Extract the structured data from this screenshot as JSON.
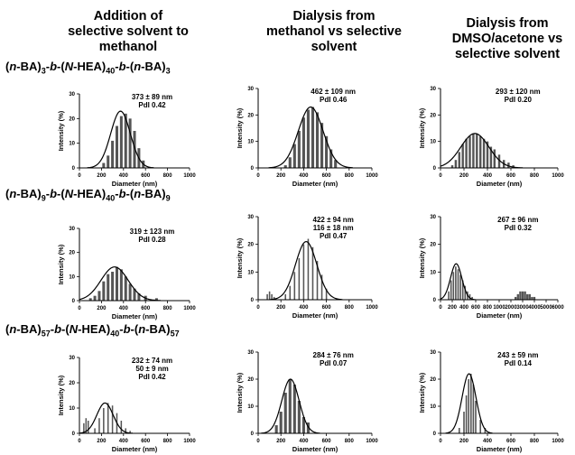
{
  "headers": {
    "col1": [
      "Addition of",
      "selective solvent to",
      "methanol"
    ],
    "col2": [
      "Dialysis from",
      "methanol vs selective",
      "solvent"
    ],
    "col3": [
      "Dialysis from",
      "DMSO/acetone vs",
      "selective solvent"
    ]
  },
  "rows": [
    {
      "pre": "(",
      "a": "n",
      "b": "-BA)",
      "s1": "3",
      "m1": "-",
      "m2": "b",
      "m3": "-(",
      "n": "N",
      "m4": "-HEA)",
      "s2": "40",
      "m5": "-",
      "m6": "b",
      "m7": "-(",
      "a2": "n",
      "b2": "-BA)",
      "s3": "3"
    },
    {
      "pre": "(",
      "a": "n",
      "b": "-BA)",
      "s1": "9",
      "m1": "-",
      "m2": "b",
      "m3": "-(",
      "n": "N",
      "m4": "-HEA)",
      "s2": "40",
      "m5": "-",
      "m6": "b",
      "m7": "-(",
      "a2": "n",
      "b2": "-BA)",
      "s3": "9"
    },
    {
      "pre": "(",
      "a": "n",
      "b": "-BA)",
      "s1": "57",
      "m1": "-",
      "m2": "b",
      "m3": "-(",
      "n": "N",
      "m4": "-HEA)",
      "s2": "40",
      "m5": "-",
      "m6": "b",
      "m7": "-(",
      "a2": "n",
      "b2": "-BA)",
      "s3": "57"
    }
  ],
  "chart_data": [
    {
      "type": "bar",
      "row": 1,
      "col": 1,
      "xlabel": "Diameter (nm)",
      "ylabel": "Intensity (%)",
      "xlim": [
        0,
        1000
      ],
      "ylim": [
        0,
        30
      ],
      "xticks": [
        "0",
        "200",
        "400",
        "600",
        "800",
        "1000"
      ],
      "yticks": [
        "0",
        "10",
        "20",
        "30"
      ],
      "annotation": [
        "373 ± 89 nm",
        "PdI 0.42"
      ],
      "x": [
        220,
        260,
        300,
        340,
        380,
        420,
        460,
        500,
        540,
        580
      ],
      "values": [
        2,
        5,
        11,
        17,
        21,
        22,
        20,
        15,
        8,
        3
      ],
      "fit": {
        "mean": 373,
        "sd": 89,
        "peak": 23
      }
    },
    {
      "type": "bar",
      "row": 1,
      "col": 2,
      "xlabel": "Diameter (nm)",
      "ylabel": "Intensity (%)",
      "xlim": [
        0,
        1000
      ],
      "ylim": [
        0,
        30
      ],
      "xticks": [
        "0",
        "200",
        "400",
        "600",
        "800",
        "1000"
      ],
      "yticks": [
        "0",
        "10",
        "20",
        "30"
      ],
      "annotation": [
        "462 ± 109 nm",
        "PdI 0.46"
      ],
      "x": [
        240,
        280,
        320,
        360,
        400,
        440,
        480,
        520,
        560,
        600,
        640,
        680
      ],
      "values": [
        1,
        4,
        9,
        14,
        19,
        22,
        23,
        21,
        17,
        12,
        7,
        3
      ],
      "fit": {
        "mean": 462,
        "sd": 109,
        "peak": 23
      }
    },
    {
      "type": "bar",
      "row": 1,
      "col": 3,
      "xlabel": "Diameter (nm)",
      "ylabel": "Intensity (%)",
      "xlim": [
        0,
        1000
      ],
      "ylim": [
        0,
        30
      ],
      "xticks": [
        "0",
        "200",
        "400",
        "600",
        "800",
        "1000"
      ],
      "yticks": [
        "0",
        "10",
        "20",
        "30"
      ],
      "annotation": [
        "293 ± 120 nm",
        "PdI 0.20"
      ],
      "x": [
        100,
        130,
        160,
        190,
        220,
        250,
        280,
        310,
        340,
        370,
        400,
        430,
        460,
        500,
        540,
        580,
        620
      ],
      "values": [
        1,
        3,
        6,
        9,
        11,
        12,
        13,
        13,
        12,
        11,
        10,
        8,
        7,
        5,
        3,
        2,
        1
      ],
      "fit": {
        "mean": 293,
        "sd": 120,
        "peak": 13
      }
    },
    {
      "type": "bar",
      "row": 2,
      "col": 1,
      "xlabel": "Diameter (nm)",
      "ylabel": "Intensity (%)",
      "xlim": [
        0,
        1000
      ],
      "ylim": [
        0,
        30
      ],
      "xticks": [
        "0",
        "200",
        "400",
        "600",
        "800",
        "1000"
      ],
      "yticks": [
        "0",
        "10",
        "20",
        "30"
      ],
      "annotation": [
        "319 ± 123 nm",
        "PdI 0.28"
      ],
      "x": [
        100,
        140,
        180,
        220,
        260,
        300,
        340,
        380,
        420,
        460,
        500,
        540,
        600,
        700
      ],
      "values": [
        1,
        2,
        4,
        8,
        11,
        12,
        14,
        13,
        10,
        7,
        5,
        3,
        2,
        1
      ],
      "fit": {
        "mean": 319,
        "sd": 123,
        "peak": 14
      }
    },
    {
      "type": "bar",
      "row": 2,
      "col": 2,
      "xlabel": "Diameter (nm)",
      "ylabel": "Intensity (%)",
      "xlim": [
        0,
        1000
      ],
      "ylim": [
        0,
        30
      ],
      "xticks": [
        "0",
        "200",
        "400",
        "600",
        "800",
        "1000"
      ],
      "yticks": [
        "0",
        "10",
        "20",
        "30"
      ],
      "annotation": [
        "422 ± 94 nm",
        "116 ± 18 nm",
        "PdI 0.47"
      ],
      "x": [
        80,
        100,
        120,
        140,
        240,
        280,
        320,
        360,
        400,
        440,
        480,
        520,
        560,
        600
      ],
      "values": [
        2,
        3,
        2,
        1,
        2,
        5,
        10,
        15,
        20,
        22,
        19,
        14,
        9,
        4
      ],
      "fit": {
        "mean": 422,
        "sd": 94,
        "peak": 21
      }
    },
    {
      "type": "bar",
      "row": 2,
      "col": 3,
      "xlabel": "Diameter (nm)",
      "ylabel": "Intensity (%)",
      "xlim": [
        0,
        6000
      ],
      "ylim": [
        0,
        30
      ],
      "xticks": [
        "0",
        "200",
        "400",
        "600",
        "800",
        "1000",
        "2000",
        "3000",
        "4000",
        "5000",
        "6000"
      ],
      "yticks": [
        "0",
        "10",
        "20",
        "30"
      ],
      "annotation": [
        "267 ± 96 nm",
        "PdI 0.32"
      ],
      "x": [
        140,
        180,
        220,
        260,
        300,
        340,
        380,
        420,
        460,
        500,
        540,
        2400,
        2600,
        2800,
        3000,
        3200,
        3400,
        3600,
        3800,
        4000
      ],
      "values": [
        3,
        7,
        10,
        12,
        11,
        9,
        7,
        5,
        3,
        2,
        1,
        1,
        2,
        3,
        3,
        3,
        2,
        2,
        1,
        1
      ],
      "fit": {
        "mean": 267,
        "sd": 96,
        "peak": 13
      }
    },
    {
      "type": "bar",
      "row": 3,
      "col": 1,
      "xlabel": "Diameter (nm)",
      "ylabel": "Intensity (%)",
      "xlim": [
        0,
        1000
      ],
      "ylim": [
        0,
        30
      ],
      "xticks": [
        "0",
        "200",
        "400",
        "600",
        "800",
        "1000"
      ],
      "yticks": [
        "0",
        "10",
        "20",
        "30"
      ],
      "annotation": [
        "232 ± 74 nm",
        "50 ± 9 nm",
        "PdI 0.42"
      ],
      "x": [
        40,
        60,
        80,
        140,
        180,
        220,
        260,
        300,
        340,
        380,
        420,
        460
      ],
      "values": [
        4,
        6,
        5,
        2,
        6,
        10,
        12,
        11,
        8,
        5,
        2,
        1
      ],
      "fit": {
        "mean": 232,
        "sd": 74,
        "peak": 12
      }
    },
    {
      "type": "bar",
      "row": 3,
      "col": 2,
      "xlabel": "Diameter (nm)",
      "ylabel": "Intensity (%)",
      "xlim": [
        0,
        1000
      ],
      "ylim": [
        0,
        30
      ],
      "xticks": [
        "0",
        "200",
        "400",
        "600",
        "800",
        "1000"
      ],
      "yticks": [
        "0",
        "10",
        "20",
        "30"
      ],
      "annotation": [
        "284 ± 76 nm",
        "PdI 0.07"
      ],
      "x": [
        160,
        200,
        240,
        280,
        320,
        360,
        400,
        440
      ],
      "values": [
        3,
        8,
        15,
        20,
        18,
        12,
        6,
        4
      ],
      "fit": {
        "mean": 284,
        "sd": 76,
        "peak": 20
      }
    },
    {
      "type": "bar",
      "row": 3,
      "col": 3,
      "xlabel": "Diameter (nm)",
      "ylabel": "Intensity (%)",
      "xlim": [
        0,
        1000
      ],
      "ylim": [
        0,
        30
      ],
      "xticks": [
        "0",
        "200",
        "400",
        "600",
        "800",
        "1000"
      ],
      "yticks": [
        "0",
        "10",
        "20",
        "30"
      ],
      "annotation": [
        "243 ± 59 nm",
        "PdI 0.14"
      ],
      "x": [
        160,
        200,
        220,
        240,
        260,
        280,
        300,
        340,
        380
      ],
      "values": [
        2,
        8,
        14,
        20,
        22,
        18,
        12,
        5,
        2
      ],
      "fit": {
        "mean": 243,
        "sd": 59,
        "peak": 22
      }
    }
  ]
}
